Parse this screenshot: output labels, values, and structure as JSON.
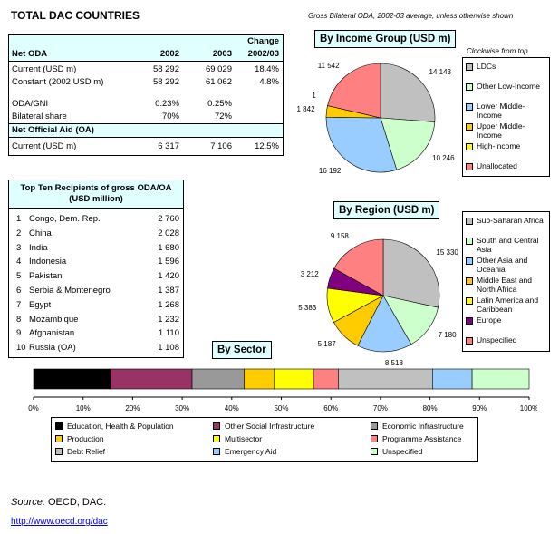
{
  "header": {
    "title": "TOTAL DAC COUNTRIES",
    "subtitle": "Gross Bilateral ODA, 2002-03 average, unless otherwise shown"
  },
  "oda_table": {
    "label": "Net ODA",
    "col_2002": "2002",
    "col_2003": "2003",
    "col_change_1": "Change",
    "col_change_2": "2002/03",
    "rows": [
      {
        "label": "Current (USD m)",
        "v2002": "58 292",
        "v2003": "69 029",
        "change": "18.4%"
      },
      {
        "label": "Constant (2002 USD m)",
        "v2002": "58 292",
        "v2003": "61 062",
        "change": "4.8%"
      },
      {
        "label": "ODA/GNI",
        "v2002": "0.23%",
        "v2003": "0.25%",
        "change": ""
      },
      {
        "label": "Bilateral share",
        "v2002": "70%",
        "v2003": "72%",
        "change": ""
      }
    ],
    "oa_label": "Net Official Aid (OA)",
    "oa_row": {
      "label": "Current (USD m)",
      "v2002": "6 317",
      "v2003": "7 106",
      "change": "12.5%"
    }
  },
  "top_ten": {
    "title": "Top Ten Recipients of gross ODA/OA (USD million)",
    "rows": [
      {
        "rank": "1",
        "name": "Congo, Dem. Rep.",
        "value": "2 760"
      },
      {
        "rank": "2",
        "name": "China",
        "value": "2 028"
      },
      {
        "rank": "3",
        "name": "India",
        "value": "1 680"
      },
      {
        "rank": "4",
        "name": "Indonesia",
        "value": "1 596"
      },
      {
        "rank": "5",
        "name": "Pakistan",
        "value": "1 420"
      },
      {
        "rank": "6",
        "name": "Serbia & Montenegro",
        "value": "1 387"
      },
      {
        "rank": "7",
        "name": "Egypt",
        "value": "1 268"
      },
      {
        "rank": "8",
        "name": "Mozambique",
        "value": "1 232"
      },
      {
        "rank": "9",
        "name": "Afghanistan",
        "value": "1 110"
      },
      {
        "rank": "10",
        "name": "Russia (OA)",
        "value": "1 108"
      }
    ]
  },
  "note": "Clockwise from top",
  "chart_data": [
    {
      "type": "pie",
      "title": "By Income Group (USD m)",
      "categories": [
        "LDCs",
        "Other Low-Income",
        "Lower Middle-Income",
        "Upper Middle-Income",
        "High-Income",
        "Unallocated"
      ],
      "values": [
        14143,
        10246,
        16192,
        1842,
        1,
        11542
      ],
      "labels": [
        "14 143",
        "10 246",
        "16 192",
        "1 842",
        "1",
        "11 542"
      ],
      "colors": [
        "#c0c0c0",
        "#ccffcc",
        "#99ccff",
        "#ffcc00",
        "#ffff00",
        "#ff8080"
      ],
      "legend_placement": "right"
    },
    {
      "type": "pie",
      "title": "By Region (USD m)",
      "categories": [
        "Sub-Saharan Africa",
        "South and Central Asia",
        "Other Asia and Oceania",
        "Middle East and North Africa",
        "Latin America and Caribbean",
        "Europe",
        "Unspecified"
      ],
      "values": [
        15330,
        7180,
        8518,
        5187,
        5383,
        3212,
        9158
      ],
      "labels": [
        "15 330",
        "7 180",
        "8 518",
        "5 187",
        "5 383",
        "3 212",
        "9 158"
      ],
      "colors": [
        "#c0c0c0",
        "#ccffcc",
        "#99ccff",
        "#ffcc00",
        "#ffff00",
        "#800080",
        "#ff8080"
      ],
      "legend_placement": "right"
    },
    {
      "type": "bar",
      "orientation": "horizontal-stacked-100",
      "title": "By Sector",
      "categories": [
        "Education, Health & Population",
        "Other Social Infrastructure",
        "Economic Infrastructure",
        "Production",
        "Multisector",
        "Programme Assistance",
        "Debt Relief",
        "Emergency Aid",
        "Unspecified"
      ],
      "values": [
        15.5,
        16.5,
        10.5,
        6,
        8,
        5,
        19,
        8,
        11.5
      ],
      "colors": [
        "#000000",
        "#993366",
        "#999999",
        "#ffcc00",
        "#ffff00",
        "#ff8080",
        "#c0c0c0",
        "#99ccff",
        "#ccffcc"
      ],
      "xlim": [
        0,
        100
      ],
      "ticks": [
        "0%",
        "10%",
        "20%",
        "30%",
        "40%",
        "50%",
        "60%",
        "70%",
        "80%",
        "90%",
        "100%"
      ],
      "legend_placement": "bottom"
    }
  ],
  "footer": {
    "source_label": "Source:",
    "source_text": "OECD, DAC.",
    "link": "http://www.oecd.org/dac"
  }
}
